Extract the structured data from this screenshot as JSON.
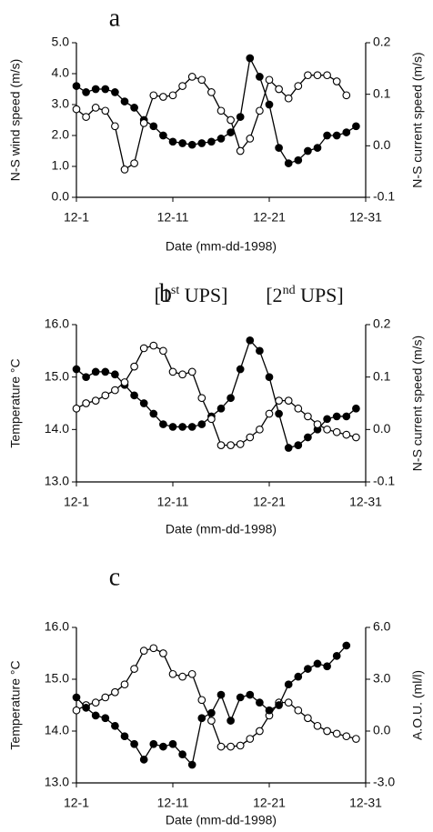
{
  "chart_data": [
    {
      "type": "line",
      "panel": "a",
      "x_label": "Date (mm-dd-1998)",
      "y_label": "N-S wind speed (m/s)",
      "y2_label": "N-S current speed (m/s)",
      "x": [
        1,
        2,
        3,
        4,
        5,
        6,
        7,
        8,
        9,
        10,
        11,
        12,
        13,
        14,
        15,
        16,
        17,
        18,
        19,
        20,
        21,
        22,
        23,
        24,
        25,
        26,
        27,
        28,
        29,
        30
      ],
      "xlim": [
        1,
        31
      ],
      "xticks": [
        {
          "value": 1,
          "label": "12-1"
        },
        {
          "value": 11,
          "label": "12-11"
        },
        {
          "value": 21,
          "label": "12-21"
        },
        {
          "value": 31,
          "label": "12-31"
        }
      ],
      "ylim": [
        0,
        5
      ],
      "yticks": [
        {
          "value": 0,
          "label": "0.0"
        },
        {
          "value": 1,
          "label": "1.0"
        },
        {
          "value": 2,
          "label": "2.0"
        },
        {
          "value": 3,
          "label": "3.0"
        },
        {
          "value": 4,
          "label": "4.0"
        },
        {
          "value": 5,
          "label": "5.0"
        }
      ],
      "y2lim": [
        -0.1,
        0.2
      ],
      "y2ticks": [
        -0.1,
        {
          "value": 0,
          "label": "0.0"
        },
        0.1,
        0.2
      ],
      "series": [
        {
          "color": "#000000",
          "marker": "filled",
          "values": [
            3.6,
            3.4,
            3.5,
            3.5,
            3.4,
            3.1,
            2.9,
            2.5,
            2.3,
            2.0,
            1.8,
            1.75,
            1.7,
            1.75,
            1.8,
            1.9,
            2.1,
            2.6,
            4.5,
            3.9,
            3.0,
            1.6,
            1.1,
            1.2,
            1.5,
            1.6,
            2.0,
            2.0,
            2.1,
            2.3
          ]
        },
        {
          "color": "#000000",
          "marker": "open",
          "axis": "y2",
          "values": [
            0.071,
            0.056,
            0.074,
            0.068,
            0.038,
            -0.046,
            -0.034,
            0.044,
            0.098,
            0.095,
            0.098,
            0.116,
            0.134,
            0.128,
            0.104,
            0.068,
            0.05,
            -0.01,
            0.014,
            0.068,
            0.128,
            0.11,
            0.092,
            0.116,
            0.137,
            0.137,
            0.137,
            0.125,
            0.098,
            null
          ]
        }
      ]
    },
    {
      "type": "line",
      "panel": "b",
      "annotations": [
        {
          "parts": [
            "[1",
            "st",
            " UPS]"
          ]
        },
        {
          "parts": [
            "[2",
            "nd",
            " UPS]"
          ]
        }
      ],
      "x_label": "Date (mm-dd-1998)",
      "y_label": "Temperature °C",
      "y2_label": "N-S current speed (m/s)",
      "x": [
        1,
        2,
        3,
        4,
        5,
        6,
        7,
        8,
        9,
        10,
        11,
        12,
        13,
        14,
        15,
        16,
        17,
        18,
        19,
        20,
        21,
        22,
        23,
        24,
        25,
        26,
        27,
        28,
        29,
        30
      ],
      "xlim": [
        1,
        31
      ],
      "xticks": [
        {
          "value": 1,
          "label": "12-1"
        },
        {
          "value": 11,
          "label": "12-11"
        },
        {
          "value": 21,
          "label": "12-21"
        },
        {
          "value": 31,
          "label": "12-31"
        }
      ],
      "ylim": [
        13,
        16
      ],
      "yticks": [
        {
          "value": 13,
          "label": "13.0"
        },
        {
          "value": 14,
          "label": "14.0"
        },
        {
          "value": 15,
          "label": "15.0"
        },
        {
          "value": 16,
          "label": "16.0"
        }
      ],
      "y2lim": [
        -0.1,
        0.2
      ],
      "y2ticks": [
        -0.1,
        {
          "value": 0,
          "label": "0.0"
        },
        0.1,
        0.2
      ],
      "series": [
        {
          "color": "#000000",
          "marker": "filled",
          "values": [
            15.15,
            15.0,
            15.1,
            15.1,
            15.05,
            14.85,
            14.65,
            14.5,
            14.3,
            14.1,
            14.05,
            14.05,
            14.05,
            14.1,
            14.25,
            14.4,
            14.6,
            15.15,
            15.7,
            15.5,
            15.0,
            14.3,
            13.65,
            13.7,
            13.85,
            14.0,
            14.2,
            14.25,
            14.25,
            14.4
          ]
        },
        {
          "color": "#000000",
          "marker": "open",
          "axis": "y2",
          "values": [
            0.04,
            0.05,
            0.055,
            0.065,
            0.075,
            0.09,
            0.12,
            0.155,
            0.16,
            0.15,
            0.11,
            0.105,
            0.11,
            0.06,
            0.02,
            -0.03,
            -0.03,
            -0.028,
            -0.015,
            0,
            0.03,
            0.055,
            0.055,
            0.04,
            0.025,
            0.01,
            0,
            -0.005,
            -0.01,
            -0.015
          ]
        }
      ]
    },
    {
      "type": "line",
      "panel": "c",
      "x_label": "Date (mm-dd-1998)",
      "y_label": "Temperature °C",
      "y2_label": "A.O.U. (ml/l)",
      "x": [
        1,
        2,
        3,
        4,
        5,
        6,
        7,
        8,
        9,
        10,
        11,
        12,
        13,
        14,
        15,
        16,
        17,
        18,
        19,
        20,
        21,
        22,
        23,
        24,
        25,
        26,
        27,
        28,
        29,
        30
      ],
      "xlim": [
        1,
        31
      ],
      "xticks": [
        {
          "value": 1,
          "label": "12-1"
        },
        {
          "value": 11,
          "label": "12-11"
        },
        {
          "value": 21,
          "label": "12-21"
        },
        {
          "value": 31,
          "label": "12-31"
        }
      ],
      "ylim": [
        13,
        16
      ],
      "yticks": [
        {
          "value": 13,
          "label": "13.0"
        },
        {
          "value": 14,
          "label": "14.0"
        },
        {
          "value": 15,
          "label": "15.0"
        },
        {
          "value": 16,
          "label": "16.0"
        }
      ],
      "y2lim": [
        -3,
        6
      ],
      "y2ticks": [
        {
          "value": -3,
          "label": "-3.0"
        },
        {
          "value": 0,
          "label": "0.0"
        },
        {
          "value": 3,
          "label": "3.0"
        },
        {
          "value": 6,
          "label": "6.0"
        }
      ],
      "series": [
        {
          "color": "#000000",
          "marker": "open",
          "values": [
            14.4,
            14.5,
            14.55,
            14.65,
            14.75,
            14.9,
            15.2,
            15.55,
            15.6,
            15.5,
            15.1,
            15.05,
            15.1,
            14.6,
            14.2,
            13.7,
            13.7,
            13.72,
            13.85,
            14.0,
            14.3,
            14.55,
            14.55,
            14.4,
            14.25,
            14.1,
            14.0,
            13.95,
            13.9,
            13.85
          ]
        },
        {
          "color": "#000000",
          "marker": "filled",
          "axis": "y2",
          "values": [
            1.95,
            1.35,
            0.9,
            0.75,
            0.3,
            -0.3,
            -0.75,
            -1.65,
            -0.75,
            -0.9,
            -0.75,
            -1.35,
            -1.95,
            0.75,
            1.05,
            2.1,
            0.6,
            1.95,
            2.1,
            1.65,
            1.2,
            1.5,
            2.7,
            3.15,
            3.6,
            3.9,
            3.75,
            4.35,
            4.95,
            null
          ]
        }
      ]
    }
  ]
}
